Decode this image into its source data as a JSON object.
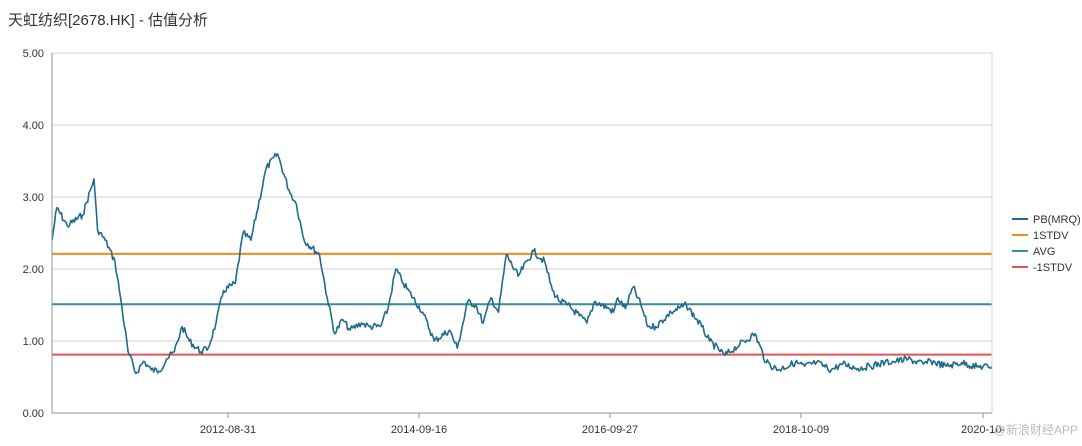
{
  "header": {
    "title": "天虹纺织[2678.HK] - 估值分析"
  },
  "watermark": "@新浪财经APP",
  "chart_data": {
    "type": "line",
    "title": "天虹纺织[2678.HK] - 估值分析",
    "xlabel": "",
    "ylabel": "",
    "ylim": [
      0,
      5
    ],
    "xlim": [
      "2010-09-01",
      "2020-11-30"
    ],
    "y_ticks": [
      "0.00",
      "1.00",
      "2.00",
      "3.00",
      "4.00",
      "5.00"
    ],
    "x_ticks": [
      "2012-08-31",
      "2014-09-16",
      "2016-09-27",
      "2018-10-09",
      "2020-10-"
    ],
    "grid": true,
    "legend_position": "right",
    "series": [
      {
        "name": "PB(MRQ)",
        "color": "#1f6b8e",
        "x": [
          "2010-09-01",
          "2010-09-20",
          "2010-11-01",
          "2011-01-01",
          "2011-02-15",
          "2011-03-01",
          "2011-04-01",
          "2011-05-10",
          "2011-06-01",
          "2011-07-01",
          "2011-08-01",
          "2011-09-01",
          "2011-10-01",
          "2011-11-01",
          "2011-12-01",
          "2012-01-01",
          "2012-02-01",
          "2012-03-01",
          "2012-04-15",
          "2012-05-15",
          "2012-06-15",
          "2012-07-15",
          "2012-08-31",
          "2012-10-01",
          "2012-11-01",
          "2013-01-01",
          "2013-02-15",
          "2013-04-01",
          "2013-05-01",
          "2013-06-01",
          "2013-08-01",
          "2013-09-01",
          "2013-10-01",
          "2013-11-01",
          "2013-12-01",
          "2014-01-15",
          "2014-02-15",
          "2014-04-01",
          "2014-05-01",
          "2014-06-01",
          "2014-07-01",
          "2014-09-16",
          "2014-11-01",
          "2015-01-01",
          "2015-02-01",
          "2015-03-15",
          "2015-04-15",
          "2015-05-15",
          "2015-06-15",
          "2015-07-15",
          "2015-08-15",
          "2015-10-01",
          "2015-12-01",
          "2016-01-15",
          "2016-02-15",
          "2016-03-15",
          "2016-04-15",
          "2016-06-01",
          "2016-07-01",
          "2016-08-01",
          "2016-09-27",
          "2016-10-15",
          "2016-11-01",
          "2016-12-01",
          "2017-01-01",
          "2017-02-01",
          "2017-03-01",
          "2017-04-01",
          "2017-06-01",
          "2017-08-01",
          "2017-10-01",
          "2017-11-01",
          "2018-01-01",
          "2018-03-01",
          "2018-05-01",
          "2018-06-15",
          "2018-08-01",
          "2018-10-09",
          "2018-11-15",
          "2019-01-01",
          "2019-03-01",
          "2019-04-15",
          "2019-06-15",
          "2019-08-01",
          "2019-10-01",
          "2019-11-15",
          "2020-01-01",
          "2020-03-01",
          "2020-04-01",
          "2020-06-01",
          "2020-08-01",
          "2020-10-01",
          "2020-11-30"
        ],
        "values": [
          2.4,
          2.85,
          2.6,
          2.75,
          3.25,
          2.55,
          2.4,
          2.1,
          1.6,
          0.85,
          0.55,
          0.72,
          0.6,
          0.58,
          0.75,
          0.85,
          1.2,
          1.0,
          0.85,
          0.9,
          1.25,
          1.7,
          1.8,
          2.5,
          2.4,
          3.4,
          3.6,
          3.1,
          2.9,
          2.4,
          2.2,
          1.6,
          1.1,
          1.3,
          1.15,
          1.25,
          1.2,
          1.2,
          1.45,
          2.0,
          1.8,
          1.4,
          1.0,
          1.15,
          0.9,
          1.55,
          1.5,
          1.25,
          1.6,
          1.4,
          2.2,
          1.9,
          2.25,
          2.1,
          1.7,
          1.55,
          1.5,
          1.35,
          1.25,
          1.55,
          1.45,
          1.4,
          1.6,
          1.45,
          1.75,
          1.5,
          1.2,
          1.2,
          1.4,
          1.5,
          1.2,
          1.0,
          0.8,
          0.95,
          1.1,
          0.7,
          0.6,
          0.7,
          0.65,
          0.7,
          0.6,
          0.68,
          0.62,
          0.65,
          0.7,
          0.72,
          0.75,
          0.68,
          0.72,
          0.65,
          0.7,
          0.64,
          0.65
        ]
      },
      {
        "name": "1STDV",
        "color": "#f08a1c",
        "value": 2.21
      },
      {
        "name": "AVG",
        "color": "#3a8c9a",
        "value": 1.51
      },
      {
        "name": "-1STDV",
        "color": "#e05555",
        "value": 0.81
      }
    ]
  }
}
